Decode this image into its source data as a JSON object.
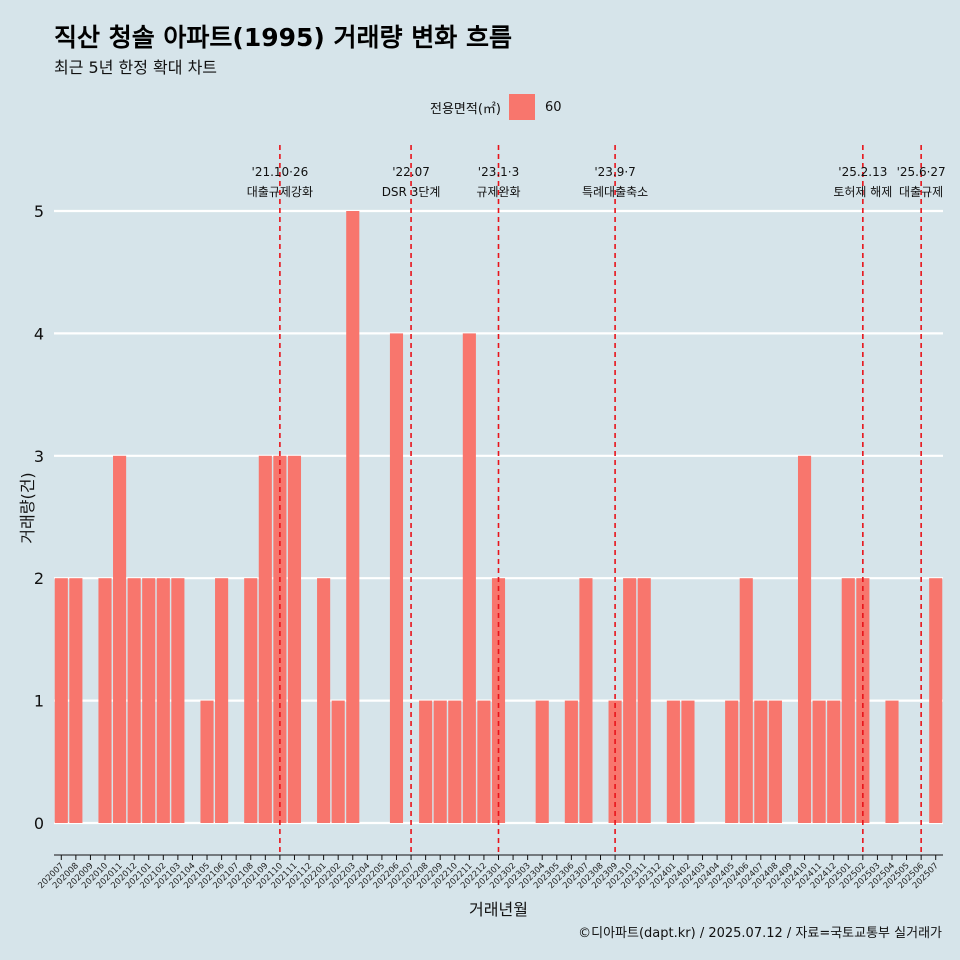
{
  "title": "직산 청솔 아파트(1995) 거래량 변화 흐름",
  "subtitle": "최근 5년 한정 확대 차트",
  "legend": {
    "title": "전용면적(㎡)",
    "entry": "60",
    "color": "#f8766d"
  },
  "caption": "©디아파트(dapt.kr) / 2025.07.12 / 자료=국토교통부 실거래가",
  "chart_data": {
    "type": "bar",
    "title": "직산 청솔 아파트(1995) 거래량 변화 흐름",
    "subtitle": "최근 5년 한정 확대 차트",
    "xlabel": "거래년월",
    "ylabel": "거래량(건)",
    "ylim": [
      0,
      5
    ],
    "yticks": [
      0,
      1,
      2,
      3,
      4,
      5
    ],
    "grid": true,
    "legend_position": "top",
    "categories": [
      "202007",
      "202008",
      "202009",
      "202010",
      "202011",
      "202012",
      "202101",
      "202102",
      "202103",
      "202104",
      "202105",
      "202106",
      "202107",
      "202108",
      "202109",
      "202110",
      "202111",
      "202112",
      "202201",
      "202202",
      "202203",
      "202204",
      "202205",
      "202206",
      "202207",
      "202208",
      "202209",
      "202210",
      "202211",
      "202212",
      "202301",
      "202302",
      "202303",
      "202304",
      "202305",
      "202306",
      "202307",
      "202308",
      "202309",
      "202310",
      "202311",
      "202312",
      "202401",
      "202402",
      "202403",
      "202404",
      "202405",
      "202406",
      "202407",
      "202408",
      "202409",
      "202410",
      "202411",
      "202412",
      "202501",
      "202502",
      "202503",
      "202504",
      "202505",
      "202506",
      "202507"
    ],
    "series": [
      {
        "name": "60",
        "color": "#f8766d",
        "values": [
          2,
          2,
          0,
          2,
          3,
          2,
          2,
          2,
          2,
          0,
          1,
          2,
          0,
          2,
          3,
          3,
          3,
          0,
          2,
          1,
          5,
          0,
          0,
          4,
          0,
          1,
          1,
          1,
          4,
          1,
          2,
          0,
          0,
          1,
          0,
          1,
          2,
          0,
          1,
          2,
          2,
          0,
          1,
          1,
          0,
          0,
          1,
          2,
          1,
          1,
          0,
          3,
          1,
          1,
          2,
          2,
          0,
          1,
          0,
          0,
          2
        ]
      }
    ],
    "annotations": [
      {
        "category_position": 15.5,
        "line1": "'21.10·26",
        "line2": "대출규제강화"
      },
      {
        "category_position": 24.5,
        "line1": "'22.07",
        "line2": "DSR 3단계"
      },
      {
        "category_position": 30.5,
        "line1": "'23.1·3",
        "line2": "규제완화"
      },
      {
        "category_position": 38.5,
        "line1": "'23.9·7",
        "line2": "특례대출축소"
      },
      {
        "category_position": 55.5,
        "line1": "'25.2.13",
        "line2": "토허제 해제"
      },
      {
        "category_position": 59.5,
        "line1": "'25.6·27",
        "line2": "대출규제"
      }
    ]
  }
}
